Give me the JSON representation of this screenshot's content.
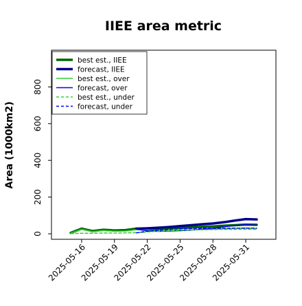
{
  "chart_data": {
    "type": "line",
    "title": "IIEE area metric",
    "xlabel": "",
    "ylabel": "Area (1000km2)",
    "ylim": [
      -30,
      1000
    ],
    "y_ticks": [
      0,
      200,
      400,
      600,
      800
    ],
    "y_tick_labels": [
      "0",
      "200",
      "400",
      "600",
      "800"
    ],
    "x": [
      "2025-05-15",
      "2025-05-16",
      "2025-05-17",
      "2025-05-18",
      "2025-05-19",
      "2025-05-20",
      "2025-05-21",
      "2025-05-22",
      "2025-05-23",
      "2025-05-24",
      "2025-05-25",
      "2025-05-26",
      "2025-05-27",
      "2025-05-28",
      "2025-05-29",
      "2025-05-30",
      "2025-05-31",
      "2025-06-01"
    ],
    "x_ticks": [
      "2025-05-16",
      "2025-05-19",
      "2025-05-22",
      "2025-05-25",
      "2025-05-28",
      "2025-05-31"
    ],
    "x_tick_colors": [
      "#000000",
      "#000000",
      "#228B22",
      "#000000",
      "#000000",
      "#000000"
    ],
    "grid": false,
    "legend_position": "top-left",
    "series": [
      {
        "name": "best est., IIEE",
        "color": "#006400",
        "style": "solid",
        "width": 3.5,
        "values": [
          5,
          28,
          15,
          22,
          18,
          20,
          28,
          25,
          28,
          30,
          32,
          35,
          38,
          40,
          44,
          47,
          50,
          49
        ]
      },
      {
        "name": "forecast, IIEE",
        "color": "#00008B",
        "style": "solid",
        "width": 3.5,
        "values": [
          null,
          null,
          null,
          null,
          null,
          null,
          28,
          30,
          33,
          37,
          42,
          47,
          52,
          56,
          63,
          72,
          80,
          78
        ]
      },
      {
        "name": "best est., over",
        "color": "#32CD32",
        "style": "solid",
        "width": 1.5,
        "values": [
          4,
          25,
          12,
          18,
          14,
          15,
          22,
          20,
          18,
          18,
          20,
          22,
          24,
          25,
          28,
          30,
          32,
          30
        ]
      },
      {
        "name": "forecast, over",
        "color": "#0000FF",
        "style": "solid",
        "width": 1.5,
        "values": [
          null,
          null,
          null,
          null,
          null,
          null,
          25,
          16,
          13,
          15,
          17,
          20,
          25,
          30,
          38,
          45,
          50,
          47
        ]
      },
      {
        "name": "best est., under",
        "color": "#32CD32",
        "style": "dashed",
        "width": 1.5,
        "values": [
          1,
          3,
          3,
          4,
          4,
          5,
          6,
          10,
          14,
          17,
          19,
          21,
          22,
          23,
          24,
          24,
          25,
          24
        ]
      },
      {
        "name": "forecast, under",
        "color": "#0000FF",
        "style": "dashed",
        "width": 1.5,
        "values": [
          null,
          null,
          null,
          null,
          null,
          null,
          5,
          14,
          20,
          24,
          27,
          29,
          30,
          30,
          30,
          31,
          31,
          31
        ]
      }
    ]
  }
}
